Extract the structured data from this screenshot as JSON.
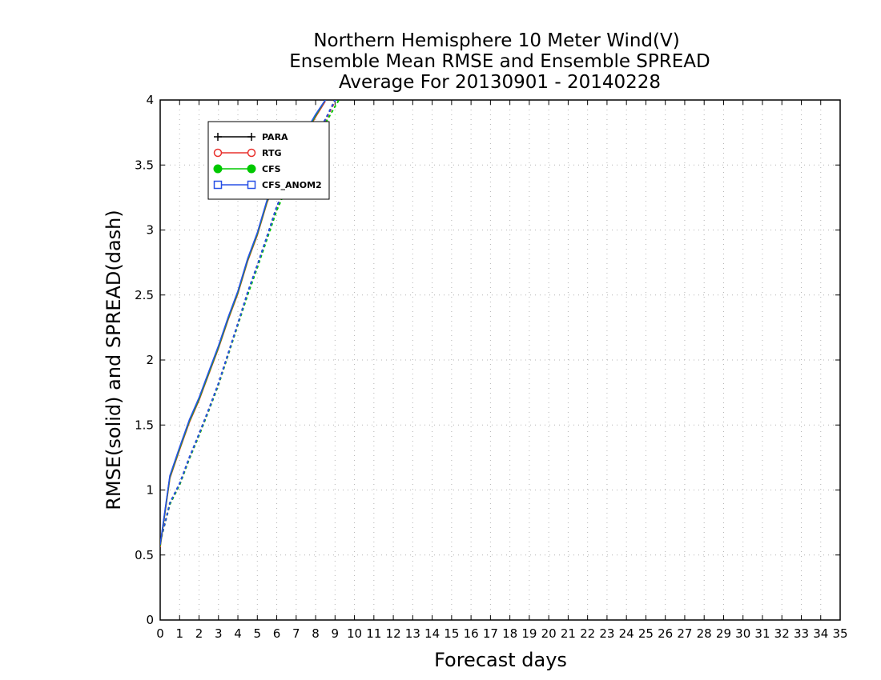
{
  "chart_data": {
    "type": "line",
    "title_lines": [
      "Northern Hemisphere 10 Meter Wind(V)",
      "Ensemble Mean RMSE and Ensemble SPREAD",
      "Average For 20130901 - 20140228"
    ],
    "xlabel": "Forecast days",
    "ylabel": "RMSE(solid) and SPREAD(dash)",
    "xlim": [
      0,
      35
    ],
    "ylim": [
      0,
      4
    ],
    "x_ticks": [
      0,
      1,
      2,
      3,
      4,
      5,
      6,
      7,
      8,
      9,
      10,
      11,
      12,
      13,
      14,
      15,
      16,
      17,
      18,
      19,
      20,
      21,
      22,
      23,
      24,
      25,
      26,
      27,
      28,
      29,
      30,
      31,
      32,
      33,
      34,
      35
    ],
    "y_ticks": [
      0,
      0.5,
      1,
      1.5,
      2,
      2.5,
      3,
      3.5,
      4
    ],
    "y_tick_labels": [
      "0",
      "0.5",
      "1",
      "1.5",
      "2",
      "2.5",
      "3",
      "3.5",
      "4"
    ],
    "grid": true,
    "legend_position": "top-left",
    "series": [
      {
        "name": "PARA",
        "color": "#000000",
        "marker": "plus",
        "rmse": {
          "x": [
            0,
            0.5,
            1,
            1.5,
            2,
            2.5,
            3,
            3.5,
            4,
            4.5,
            5,
            5.5,
            6,
            6.5,
            7,
            7.5,
            8,
            8.5
          ],
          "y": [
            0.57,
            1.1,
            1.32,
            1.53,
            1.7,
            1.9,
            2.1,
            2.32,
            2.52,
            2.77,
            2.97,
            3.22,
            3.4,
            3.5,
            3.62,
            3.75,
            3.88,
            4.0
          ]
        },
        "spread": {
          "x": [
            0,
            0.5,
            1,
            1.5,
            2,
            2.5,
            3,
            3.5,
            4,
            4.5,
            5,
            5.5,
            6,
            6.5,
            7,
            7.5,
            8,
            8.5,
            9
          ],
          "y": [
            0.6,
            0.9,
            1.05,
            1.25,
            1.43,
            1.62,
            1.82,
            2.05,
            2.28,
            2.52,
            2.73,
            2.95,
            3.18,
            3.35,
            3.5,
            3.62,
            3.73,
            3.85,
            4.0
          ]
        }
      },
      {
        "name": "RTG",
        "color": "#e8322e",
        "marker": "open-circle",
        "rmse": {
          "x": [
            0,
            0.5,
            1,
            1.5,
            2,
            2.5,
            3,
            3.5,
            4,
            4.5,
            5,
            5.5,
            6,
            6.5,
            7,
            7.5,
            8,
            8.5
          ],
          "y": [
            0.56,
            1.09,
            1.31,
            1.52,
            1.69,
            1.89,
            2.09,
            2.31,
            2.51,
            2.76,
            2.96,
            3.21,
            3.39,
            3.49,
            3.61,
            3.74,
            3.87,
            3.99
          ]
        },
        "spread": {
          "x": [
            0,
            0.5,
            1,
            1.5,
            2,
            2.5,
            3,
            3.5,
            4,
            4.5,
            5,
            5.5,
            6,
            6.5,
            7,
            7.5,
            8,
            8.5,
            9
          ],
          "y": [
            0.6,
            0.89,
            1.04,
            1.24,
            1.42,
            1.61,
            1.81,
            2.04,
            2.27,
            2.51,
            2.72,
            2.94,
            3.17,
            3.34,
            3.49,
            3.61,
            3.72,
            3.84,
            3.99
          ]
        }
      },
      {
        "name": "CFS",
        "color": "#00c800",
        "marker": "filled-circle",
        "rmse": {
          "x": [
            0,
            0.5,
            1,
            1.5,
            2,
            2.5,
            3,
            3.5,
            4,
            4.5,
            5,
            5.5,
            6,
            6.5,
            7,
            7.5,
            8,
            8.5
          ],
          "y": [
            0.57,
            1.1,
            1.32,
            1.53,
            1.7,
            1.9,
            2.1,
            2.32,
            2.52,
            2.77,
            2.97,
            3.22,
            3.4,
            3.5,
            3.62,
            3.75,
            3.88,
            4.0
          ]
        },
        "spread": {
          "x": [
            0,
            0.5,
            1,
            1.5,
            2,
            2.5,
            3,
            3.5,
            4,
            4.5,
            5,
            5.5,
            6,
            6.5,
            7,
            7.5,
            8,
            8.5,
            9,
            9.2
          ],
          "y": [
            0.6,
            0.89,
            1.04,
            1.24,
            1.42,
            1.61,
            1.81,
            2.04,
            2.27,
            2.5,
            2.71,
            2.93,
            3.15,
            3.32,
            3.47,
            3.59,
            3.7,
            3.82,
            3.95,
            4.0
          ]
        }
      },
      {
        "name": "CFS_ANOM2",
        "color": "#2850e6",
        "marker": "open-square",
        "rmse": {
          "x": [
            0,
            0.5,
            1,
            1.5,
            2,
            2.5,
            3,
            3.5,
            4,
            4.5,
            5,
            5.5,
            6,
            6.5,
            7,
            7.5,
            8,
            8.5
          ],
          "y": [
            0.58,
            1.11,
            1.33,
            1.54,
            1.71,
            1.91,
            2.11,
            2.33,
            2.53,
            2.78,
            2.98,
            3.23,
            3.41,
            3.51,
            3.63,
            3.76,
            3.89,
            4.0
          ]
        },
        "spread": {
          "x": [
            0,
            0.5,
            1,
            1.5,
            2,
            2.5,
            3,
            3.5,
            4,
            4.5,
            5,
            5.5,
            6,
            6.5,
            7,
            7.5,
            8,
            8.5,
            9
          ],
          "y": [
            0.6,
            0.9,
            1.05,
            1.25,
            1.43,
            1.62,
            1.82,
            2.05,
            2.28,
            2.52,
            2.73,
            2.95,
            3.18,
            3.35,
            3.5,
            3.62,
            3.73,
            3.85,
            4.0
          ]
        }
      }
    ]
  }
}
